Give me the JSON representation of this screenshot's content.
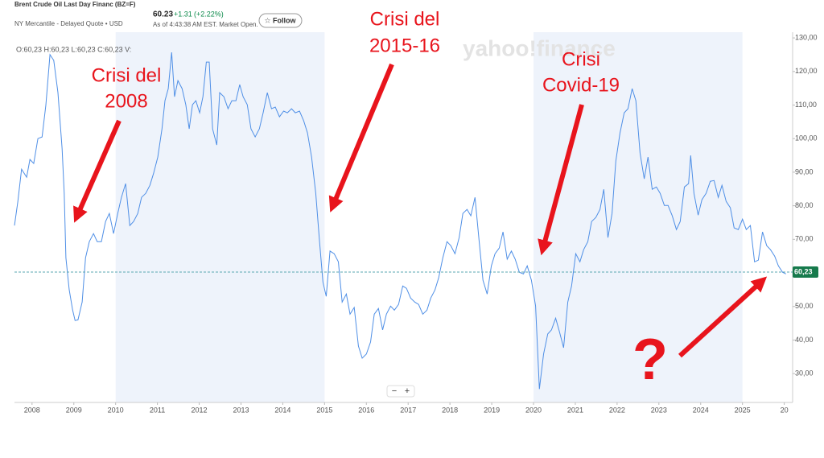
{
  "header": {
    "title": "Brent Crude Oil Last Day Financ (BZ=F)",
    "exchange": "NY Mercantile - Delayed Quote • USD",
    "price": "60.23",
    "change": "+1.31",
    "change_percent": "(+2.22%)",
    "as_of": "As of 4:43:38 AM EST. Market Open.",
    "follow": "☆ Follow",
    "ohlc": "O:60,23 H:60,23 L:60,23 C:60,23 V:",
    "watermark": "yahoo!finance",
    "zoom_controls": [
      "−",
      "+"
    ]
  },
  "chart_data": {
    "type": "line",
    "color": "#4f8fe6",
    "x": [
      2007.58,
      2007.66,
      2007.75,
      2007.87,
      2007.95,
      2008.04,
      2008.14,
      2008.24,
      2008.33,
      2008.43,
      2008.52,
      2008.62,
      2008.72,
      2008.77,
      2008.81,
      2008.89,
      2008.97,
      2009.03,
      2009.1,
      2009.2,
      2009.28,
      2009.37,
      2009.47,
      2009.56,
      2009.66,
      2009.76,
      2009.85,
      2009.95,
      2010.05,
      2010.14,
      2010.24,
      2010.34,
      2010.43,
      2010.53,
      2010.62,
      2010.72,
      2010.82,
      2010.91,
      2011.01,
      2011.11,
      2011.18,
      2011.26,
      2011.34,
      2011.41,
      2011.49,
      2011.59,
      2011.68,
      2011.76,
      2011.84,
      2011.92,
      2012.01,
      2012.09,
      2012.17,
      2012.24,
      2012.32,
      2012.42,
      2012.49,
      2012.59,
      2012.69,
      2012.78,
      2012.88,
      2012.97,
      2013.05,
      2013.15,
      2013.24,
      2013.34,
      2013.44,
      2013.53,
      2013.63,
      2013.73,
      2013.82,
      2013.92,
      2014.02,
      2014.11,
      2014.21,
      2014.3,
      2014.4,
      2014.5,
      2014.59,
      2014.69,
      2014.79,
      2014.88,
      2014.96,
      2015.04,
      2015.13,
      2015.23,
      2015.33,
      2015.42,
      2015.52,
      2015.61,
      2015.71,
      2015.81,
      2015.9,
      2016.0,
      2016.1,
      2016.19,
      2016.29,
      2016.39,
      2016.48,
      2016.58,
      2016.67,
      2016.77,
      2016.87,
      2016.96,
      2017.06,
      2017.16,
      2017.25,
      2017.35,
      2017.45,
      2017.54,
      2017.64,
      2017.73,
      2017.83,
      2017.93,
      2018.02,
      2018.12,
      2018.22,
      2018.31,
      2018.41,
      2018.5,
      2018.6,
      2018.7,
      2018.79,
      2018.89,
      2018.99,
      2019.08,
      2019.18,
      2019.27,
      2019.37,
      2019.47,
      2019.56,
      2019.66,
      2019.76,
      2019.85,
      2019.95,
      2020.05,
      2020.14,
      2020.24,
      2020.34,
      2020.43,
      2020.53,
      2020.62,
      2020.72,
      2020.82,
      2020.91,
      2021.01,
      2021.11,
      2021.2,
      2021.3,
      2021.39,
      2021.49,
      2021.59,
      2021.68,
      2021.78,
      2021.88,
      2021.97,
      2022.07,
      2022.17,
      2022.26,
      2022.36,
      2022.45,
      2022.55,
      2022.65,
      2022.74,
      2022.84,
      2022.94,
      2023.03,
      2023.13,
      2023.22,
      2023.32,
      2023.42,
      2023.51,
      2023.61,
      2023.71,
      2023.76,
      2023.84,
      2023.94,
      2024.03,
      2024.13,
      2024.23,
      2024.32,
      2024.42,
      2024.51,
      2024.61,
      2024.71,
      2024.8,
      2024.9,
      2025.0,
      2025.09,
      2025.19,
      2025.29,
      2025.38,
      2025.48,
      2025.58,
      2025.67,
      2025.77,
      2025.86,
      2025.96,
      2026.04
    ],
    "values": [
      74.1,
      81.3,
      90.9,
      88.5,
      93.8,
      92.6,
      100,
      100.5,
      110,
      125,
      123.3,
      113.7,
      96.9,
      83.7,
      64.5,
      55,
      49,
      45.8,
      46,
      51.3,
      64.5,
      69.3,
      71.7,
      69.3,
      69.3,
      75.3,
      77.7,
      71.7,
      77.7,
      82.5,
      86.6,
      74.1,
      75.3,
      77.7,
      82.5,
      83.7,
      86.1,
      89.7,
      94.5,
      102.9,
      111.3,
      114.9,
      125.7,
      112.5,
      117.3,
      114.9,
      110.1,
      102.9,
      110.1,
      111.3,
      107.7,
      112.5,
      122.8,
      122.8,
      102.9,
      98.1,
      113.7,
      112.5,
      108.9,
      111.3,
      111.3,
      116.1,
      112.5,
      110.1,
      102.9,
      100.5,
      102.9,
      107.7,
      113.7,
      108.9,
      109.4,
      106.5,
      108.2,
      107.7,
      108.9,
      107.7,
      108.2,
      105.3,
      101.7,
      94.5,
      83.7,
      69.3,
      57.3,
      53,
      66.5,
      65.7,
      63.3,
      51.3,
      53.7,
      47.7,
      49.7,
      38.2,
      34.6,
      35.8,
      39.4,
      47.7,
      49.4,
      43,
      47.7,
      50.1,
      48.9,
      50.6,
      56.1,
      55.4,
      52.5,
      51.3,
      50.6,
      47.7,
      48.9,
      52.5,
      54.9,
      58.5,
      64.5,
      69.3,
      68.1,
      65.7,
      70.5,
      77.7,
      78.9,
      77,
      82.5,
      69.3,
      57.8,
      53.7,
      62.1,
      65.7,
      67.4,
      72.2,
      64.1,
      66.5,
      64.1,
      60.2,
      59.7,
      62.1,
      57.8,
      50.1,
      25.4,
      35.8,
      41.8,
      43,
      46.5,
      42.5,
      37.7,
      51.3,
      56.1,
      65.7,
      63.3,
      66.9,
      69.3,
      75.3,
      76.5,
      78.9,
      84.9,
      70.5,
      77.7,
      93.3,
      101.7,
      107.7,
      108.9,
      114.9,
      111.3,
      95.7,
      88,
      94.5,
      84.9,
      85.6,
      83.7,
      80.1,
      80.1,
      77,
      72.9,
      75.3,
      85.6,
      86.6,
      95,
      83.7,
      77.2,
      81.8,
      83.7,
      87.3,
      87.5,
      82.5,
      86.1,
      81.3,
      79.4,
      73.4,
      72.9,
      76,
      72.9,
      74.1,
      63.3,
      63.8,
      72.2,
      68.1,
      66.9,
      65,
      62.1,
      60.2,
      59.7
    ],
    "xlim": [
      2007.58,
      2026.2
    ],
    "xticks": [
      2008,
      2009,
      2010,
      2011,
      2012,
      2013,
      2014,
      2015,
      2016,
      2017,
      2018,
      2019,
      2020,
      2021,
      2022,
      2023,
      2024,
      2025,
      {
        "value": 2026,
        "label": "20"
      }
    ],
    "ylim": [
      21.4,
      131.7
    ],
    "yticks": [
      {
        "value": 130,
        "label": "130,00"
      },
      {
        "value": 120,
        "label": "120,00"
      },
      {
        "value": 110,
        "label": "110,00"
      },
      {
        "value": 100,
        "label": "100,00"
      },
      {
        "value": 90,
        "label": "90,00"
      },
      {
        "value": 80,
        "label": "80,00"
      },
      {
        "value": 70,
        "label": "70,00"
      },
      {
        "value": 60,
        "label": "60,00"
      },
      {
        "value": 50,
        "label": "50,00"
      },
      {
        "value": 40,
        "label": "40,00"
      },
      {
        "value": 30,
        "label": "30,00"
      }
    ],
    "reference_line": {
      "value": 60.23,
      "label": "60,23"
    },
    "grid": false,
    "annotations": [
      {
        "lines": [
          "Crisi del",
          "2008"
        ]
      },
      {
        "lines": [
          "Crisi del",
          "2015-16"
        ]
      },
      {
        "lines": [
          "Crisi",
          "Covid-19"
        ]
      },
      {
        "lines": [
          "?"
        ]
      }
    ]
  }
}
